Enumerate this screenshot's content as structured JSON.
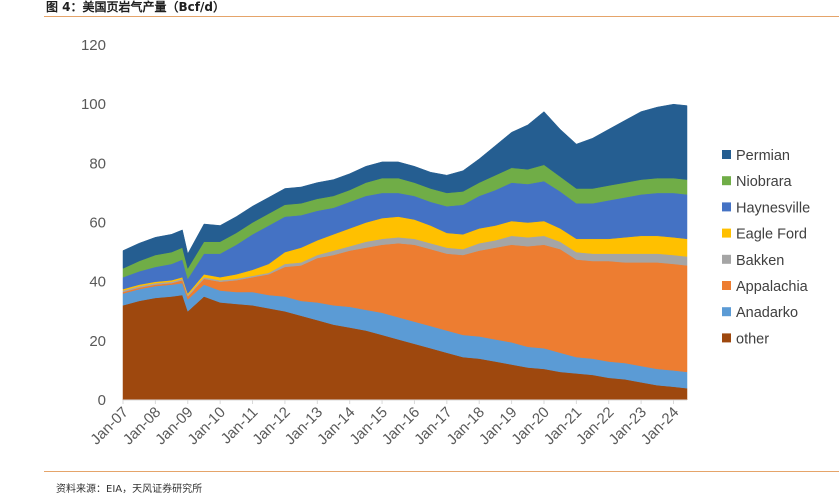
{
  "figure": {
    "title": "图 4：美国页岩气产量（Bcf/d）",
    "source": "资料来源：EIA，天风证券研究所"
  },
  "chart_data": {
    "type": "area",
    "stacked": true,
    "title": "图 4：美国页岩气产量（Bcf/d）",
    "xlabel": "",
    "ylabel": "",
    "ylim": [
      0,
      120
    ],
    "yticks": [
      0,
      20,
      40,
      60,
      80,
      100,
      120
    ],
    "x_tick_labels": [
      "Jan-07",
      "Jan-08",
      "Jan-09",
      "Jan-10",
      "Jan-11",
      "Jan-12",
      "Jan-13",
      "Jan-14",
      "Jan-15",
      "Jan-16",
      "Jan-17",
      "Jan-18",
      "Jan-19",
      "Jan-20",
      "Jan-21",
      "Jan-22",
      "Jan-23",
      "Jan-24"
    ],
    "x": [
      "Jan-07",
      "Jul-07",
      "Jan-08",
      "Jul-08",
      "Nov-08",
      "Jan-09",
      "Jul-09",
      "Jan-10",
      "Jul-10",
      "Jan-11",
      "Jul-11",
      "Jan-12",
      "Jul-12",
      "Jan-13",
      "Jul-13",
      "Jan-14",
      "Jul-14",
      "Jan-15",
      "Jul-15",
      "Jan-16",
      "Jul-16",
      "Jan-17",
      "Jul-17",
      "Jan-18",
      "Jul-18",
      "Jan-19",
      "Jul-19",
      "Jan-20",
      "Jul-20",
      "Jan-21",
      "Jul-21",
      "Jan-22",
      "Jul-22",
      "Jan-23",
      "Jul-23",
      "Jan-24",
      "Jun-24"
    ],
    "legend_position": "right",
    "series": [
      {
        "name": "other",
        "color": "#9e480e",
        "values": [
          32,
          33.5,
          34.5,
          35,
          35.5,
          30,
          35,
          33,
          32.5,
          32,
          31,
          30,
          28.5,
          27,
          25.5,
          24.5,
          23.5,
          22,
          20.5,
          19,
          17.5,
          16,
          14.5,
          14,
          13,
          12,
          11,
          10.5,
          9.5,
          9,
          8.5,
          7.5,
          7,
          6,
          5,
          4.5,
          4
        ]
      },
      {
        "name": "Anadarko",
        "color": "#5b9bd5",
        "values": [
          4,
          4,
          4,
          4,
          4,
          4,
          4,
          4,
          4,
          4.5,
          4.5,
          5,
          5,
          6,
          6.5,
          7,
          7,
          7.5,
          7.5,
          7.5,
          7.5,
          7.5,
          7.5,
          7.5,
          7.5,
          7.5,
          7,
          7,
          6.5,
          5.5,
          5.5,
          5.5,
          5.5,
          5.5,
          5.5,
          5.5,
          5.5
        ]
      },
      {
        "name": "Appalachia",
        "color": "#ed7d31",
        "values": [
          0.5,
          0.5,
          0.5,
          0.5,
          1,
          1,
          2,
          3,
          4,
          5,
          7,
          10,
          12,
          15,
          17,
          19,
          21,
          23,
          25,
          26,
          26,
          26,
          27,
          29,
          31,
          33,
          34,
          35,
          35,
          33,
          33,
          34,
          34,
          35,
          36,
          36,
          36
        ]
      },
      {
        "name": "Bakken",
        "color": "#a5a5a5",
        "values": [
          0.5,
          0.5,
          0.5,
          0.5,
          0.5,
          0.5,
          0.5,
          0.5,
          0.5,
          0.5,
          0.5,
          1,
          1,
          1,
          1.5,
          1.5,
          2,
          2,
          2,
          2,
          2,
          2,
          2,
          2.5,
          2.5,
          3,
          3,
          3,
          2.5,
          2.5,
          2.5,
          2.5,
          3,
          3,
          3,
          3,
          3
        ]
      },
      {
        "name": "Eagle Ford",
        "color": "#ffc000",
        "values": [
          0.5,
          0.5,
          0.5,
          0.5,
          0.5,
          0.5,
          1,
          1,
          1.5,
          2,
          3,
          4,
          5,
          5,
          5.5,
          6,
          6.5,
          7,
          7,
          6.5,
          6,
          5,
          5,
          5,
          5,
          5,
          5,
          5,
          4.5,
          4.5,
          5,
          5,
          5.5,
          6,
          6,
          6,
          6
        ]
      },
      {
        "name": "Haynesville",
        "color": "#4472c4",
        "values": [
          4,
          4.5,
          5,
          5.5,
          6,
          5,
          7,
          8,
          10,
          12,
          13,
          12,
          11,
          10,
          9,
          9,
          9,
          8.5,
          8,
          8,
          8,
          9,
          10,
          11,
          12,
          13,
          13,
          13.5,
          12.5,
          12,
          12,
          13,
          13.5,
          14,
          14.5,
          15,
          15
        ]
      },
      {
        "name": "Niobrara",
        "color": "#70ad47",
        "values": [
          3,
          3.5,
          4,
          4,
          4,
          3.5,
          4,
          4,
          4,
          4,
          4,
          4,
          4,
          4,
          4,
          4,
          4.5,
          5,
          5,
          4.5,
          4.5,
          4.5,
          4.5,
          4.5,
          5,
          5,
          5,
          5.5,
          5,
          5,
          5,
          5,
          5,
          5,
          5,
          5,
          5
        ]
      },
      {
        "name": "Permian",
        "color": "#255e91",
        "values": [
          6,
          6,
          6,
          6,
          6,
          5,
          6,
          5.5,
          5.5,
          5.5,
          5.5,
          5.5,
          5.5,
          5.5,
          5.5,
          5.5,
          5.5,
          5.5,
          5.5,
          5.5,
          5.5,
          6,
          7,
          8,
          10,
          12,
          15,
          18,
          16,
          15,
          17,
          19,
          21,
          23,
          24,
          25,
          25
        ]
      }
    ]
  }
}
